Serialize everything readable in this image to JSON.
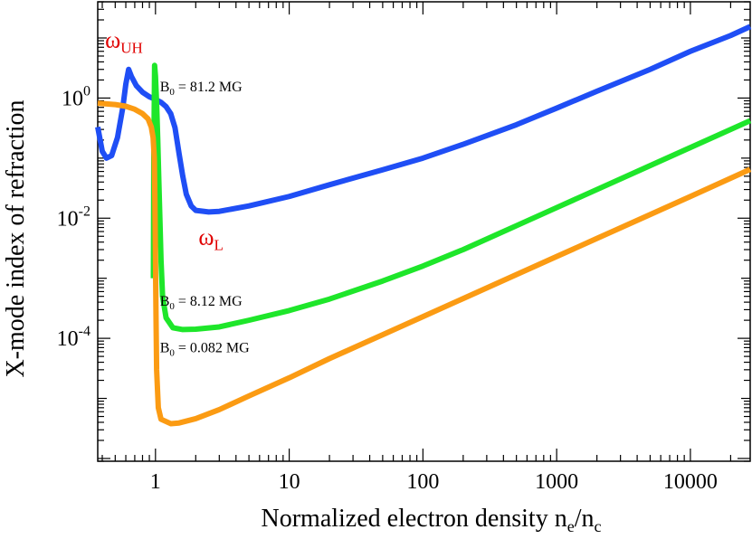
{
  "chart_data": {
    "type": "line",
    "title": "",
    "xlabel": {
      "main": "Normalized electron density n",
      "sub1": "e",
      "mid": "/n",
      "sub2": "c"
    },
    "ylabel": "X-mode index of refraction",
    "xscale": "log",
    "yscale": "log",
    "xlim": [
      0.37,
      28000
    ],
    "ylim": [
      9e-07,
      40
    ],
    "grid": false,
    "x_ticks": [
      {
        "value": 1,
        "label": "1"
      },
      {
        "value": 10,
        "label": "10"
      },
      {
        "value": 100,
        "label": "100"
      },
      {
        "value": 1000,
        "label": "1000"
      },
      {
        "value": 10000,
        "label": "10000"
      }
    ],
    "y_ticks": [
      {
        "value": 1,
        "base": "10",
        "exp": "0"
      },
      {
        "value": 0.01,
        "base": "10",
        "exp": "-2"
      },
      {
        "value": 0.0001,
        "base": "10",
        "exp": "-4"
      }
    ],
    "series": [
      {
        "color": "#1f4ef5",
        "points": [
          [
            0.37,
            0.33
          ],
          [
            0.4,
            0.13
          ],
          [
            0.43,
            0.1
          ],
          [
            0.47,
            0.11
          ],
          [
            0.52,
            0.22
          ],
          [
            0.57,
            0.7
          ],
          [
            0.6,
            1.7
          ],
          [
            0.63,
            3.0
          ],
          [
            0.66,
            2.3
          ],
          [
            0.72,
            1.6
          ],
          [
            0.8,
            1.25
          ],
          [
            0.9,
            1.05
          ],
          [
            1.0,
            0.95
          ],
          [
            1.1,
            0.85
          ],
          [
            1.2,
            0.72
          ],
          [
            1.3,
            0.55
          ],
          [
            1.4,
            0.32
          ],
          [
            1.5,
            0.12
          ],
          [
            1.6,
            0.05
          ],
          [
            1.7,
            0.025
          ],
          [
            1.85,
            0.016
          ],
          [
            2.0,
            0.0135
          ],
          [
            2.5,
            0.0127
          ],
          [
            3,
            0.013
          ],
          [
            5,
            0.016
          ],
          [
            10,
            0.023
          ],
          [
            20,
            0.036
          ],
          [
            50,
            0.064
          ],
          [
            100,
            0.1
          ],
          [
            200,
            0.17
          ],
          [
            500,
            0.36
          ],
          [
            1000,
            0.68
          ],
          [
            2000,
            1.3
          ],
          [
            5000,
            3.0
          ],
          [
            10000,
            6.0
          ],
          [
            20000,
            11.0
          ],
          [
            28000,
            15.5
          ]
        ]
      },
      {
        "color": "#1ee62a",
        "points": [
          [
            0.965,
            0.001
          ],
          [
            0.972,
            0.1
          ],
          [
            0.985,
            3.5
          ],
          [
            1.0,
            2.3
          ],
          [
            1.02,
            0.8
          ],
          [
            1.04,
            0.2
          ],
          [
            1.06,
            0.04
          ],
          [
            1.08,
            0.009
          ],
          [
            1.1,
            0.002
          ],
          [
            1.13,
            0.0005
          ],
          [
            1.2,
            0.00022
          ],
          [
            1.35,
            0.00015
          ],
          [
            1.6,
            0.00014
          ],
          [
            2,
            0.000142
          ],
          [
            3,
            0.000155
          ],
          [
            5,
            0.0002
          ],
          [
            10,
            0.00029
          ],
          [
            20,
            0.00045
          ],
          [
            50,
            0.0009
          ],
          [
            100,
            0.0016
          ],
          [
            200,
            0.003
          ],
          [
            500,
            0.0075
          ],
          [
            1000,
            0.015
          ],
          [
            2000,
            0.03
          ],
          [
            5000,
            0.075
          ],
          [
            10000,
            0.15
          ],
          [
            28000,
            0.42
          ]
        ]
      },
      {
        "color": "#fb9b13",
        "points": [
          [
            0.37,
            0.82
          ],
          [
            0.5,
            0.78
          ],
          [
            0.6,
            0.73
          ],
          [
            0.7,
            0.65
          ],
          [
            0.8,
            0.55
          ],
          [
            0.88,
            0.45
          ],
          [
            0.93,
            0.33
          ],
          [
            0.96,
            0.22
          ],
          [
            0.98,
            0.1
          ],
          [
            0.99,
            0.02
          ],
          [
            1.0,
            0.002
          ],
          [
            1.01,
            0.0002
          ],
          [
            1.02,
            3e-05
          ],
          [
            1.05,
            7e-06
          ],
          [
            1.1,
            4.5e-06
          ],
          [
            1.3,
            3.8e-06
          ],
          [
            1.5,
            3.9e-06
          ],
          [
            2,
            4.6e-06
          ],
          [
            3,
            6.5e-06
          ],
          [
            5,
            1.1e-05
          ],
          [
            10,
            2.2e-05
          ],
          [
            20,
            4.6e-05
          ],
          [
            50,
            0.000115
          ],
          [
            100,
            0.00023
          ],
          [
            200,
            0.00046
          ],
          [
            500,
            0.00115
          ],
          [
            1000,
            0.0023
          ],
          [
            2000,
            0.0046
          ],
          [
            5000,
            0.0115
          ],
          [
            10000,
            0.023
          ],
          [
            28000,
            0.065
          ]
        ]
      }
    ],
    "annotations": [
      {
        "text": "B",
        "sub": "0",
        "rest": " = 81.2 MG",
        "color": "#000000",
        "x": 1.08,
        "y": 1.3
      },
      {
        "text": "B",
        "sub": "0",
        "rest": " = 8.12 MG",
        "color": "#000000",
        "x": 1.08,
        "y": 0.00035
      },
      {
        "text": "B",
        "sub": "0",
        "rest": " = 0.082 MG",
        "color": "#000000",
        "x": 1.08,
        "y": 5.9e-05
      },
      {
        "text": "ω",
        "sub": "UH",
        "rest": "",
        "color": "#e00000",
        "x": 0.42,
        "y": 7.0
      },
      {
        "text": "ω",
        "sub": "L",
        "rest": "",
        "color": "#e00000",
        "x": 2.1,
        "y": 0.0036
      }
    ]
  }
}
